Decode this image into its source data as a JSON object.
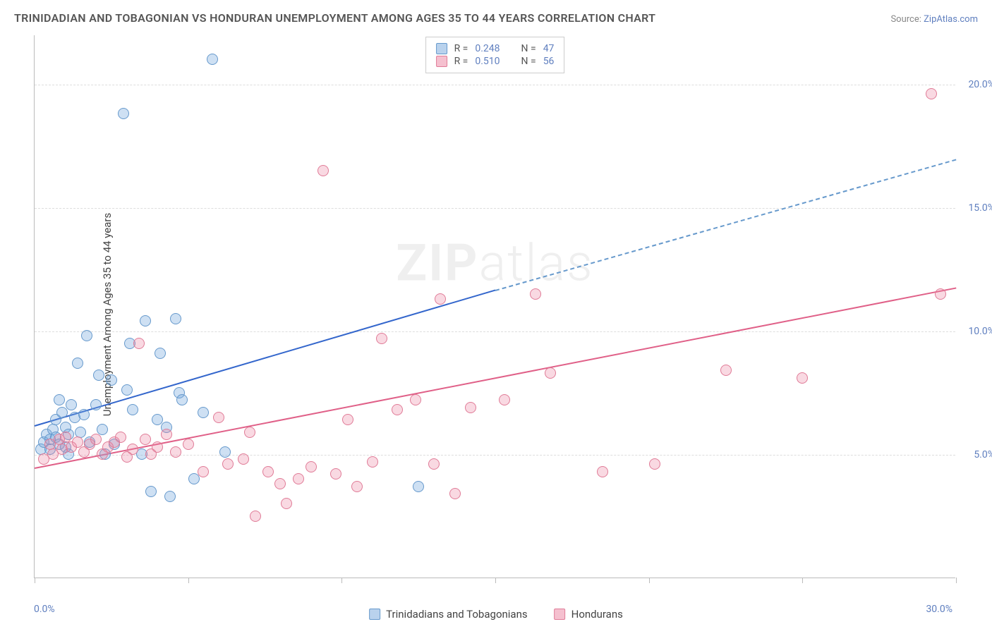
{
  "title": "TRINIDADIAN AND TOBAGONIAN VS HONDURAN UNEMPLOYMENT AMONG AGES 35 TO 44 YEARS CORRELATION CHART",
  "source_label": "Source:",
  "source_value": "ZipAtlas.com",
  "ylabel": "Unemployment Among Ages 35 to 44 years",
  "watermark_a": "ZIP",
  "watermark_b": "atlas",
  "background_color": "#ffffff",
  "axis_color": "#bbbbbb",
  "grid_color": "#dddddd",
  "tick_label_color": "#5f7fbf",
  "text_color": "#444444",
  "xlim": [
    0,
    30
  ],
  "ylim": [
    0,
    22
  ],
  "xtick_positions": [
    0,
    5,
    10,
    15,
    20,
    25,
    30
  ],
  "xtick_labels": {
    "0": "0.0%",
    "30": "30.0%"
  },
  "ytick_positions": [
    5,
    10,
    15,
    20
  ],
  "ytick_labels": {
    "5": "5.0%",
    "10": "10.0%",
    "15": "15.0%",
    "20": "20.0%"
  },
  "legend_top": {
    "rows": [
      {
        "swatch": "blue",
        "r_label": "R =",
        "r_value": "0.248",
        "n_label": "N =",
        "n_value": "47"
      },
      {
        "swatch": "pink",
        "r_label": "R =",
        "r_value": "0.510",
        "n_label": "N =",
        "n_value": "56"
      }
    ]
  },
  "legend_bottom": {
    "items": [
      {
        "swatch": "blue",
        "label": "Trinidadians and Tobagonians"
      },
      {
        "swatch": "pink",
        "label": "Hondurans"
      }
    ]
  },
  "series": [
    {
      "name": "Trinidadians and Tobagonians",
      "marker_fill": "rgba(115,165,220,0.35)",
      "marker_stroke": "#6699cc",
      "marker_size": 16,
      "trend_color": "#3366cc",
      "trend_dash_color": "#6699cc",
      "trend": {
        "x1": 0,
        "y1": 6.2,
        "x_solid": 15,
        "y_solid": 11.7,
        "x2": 30,
        "y2": 17
      },
      "points": [
        [
          0.2,
          5.2
        ],
        [
          0.3,
          5.5
        ],
        [
          0.4,
          5.8
        ],
        [
          0.5,
          5.2
        ],
        [
          0.5,
          5.6
        ],
        [
          0.6,
          6.0
        ],
        [
          0.7,
          5.7
        ],
        [
          0.7,
          6.4
        ],
        [
          0.8,
          5.4
        ],
        [
          0.8,
          7.2
        ],
        [
          0.9,
          6.7
        ],
        [
          1.0,
          5.3
        ],
        [
          1.0,
          6.1
        ],
        [
          1.1,
          5.0
        ],
        [
          1.1,
          5.8
        ],
        [
          1.2,
          7.0
        ],
        [
          1.3,
          6.5
        ],
        [
          1.4,
          8.7
        ],
        [
          1.5,
          5.9
        ],
        [
          1.6,
          6.6
        ],
        [
          1.7,
          9.8
        ],
        [
          1.8,
          5.5
        ],
        [
          2.0,
          7.0
        ],
        [
          2.1,
          8.2
        ],
        [
          2.2,
          6.0
        ],
        [
          2.3,
          5.0
        ],
        [
          2.5,
          8.0
        ],
        [
          2.6,
          5.4
        ],
        [
          2.9,
          18.8
        ],
        [
          3.0,
          7.6
        ],
        [
          3.1,
          9.5
        ],
        [
          3.2,
          6.8
        ],
        [
          3.5,
          5.0
        ],
        [
          3.6,
          10.4
        ],
        [
          3.8,
          3.5
        ],
        [
          4.0,
          6.4
        ],
        [
          4.1,
          9.1
        ],
        [
          4.3,
          6.1
        ],
        [
          4.4,
          3.3
        ],
        [
          4.6,
          10.5
        ],
        [
          4.7,
          7.5
        ],
        [
          4.8,
          7.2
        ],
        [
          5.2,
          4.0
        ],
        [
          5.5,
          6.7
        ],
        [
          5.8,
          21.0
        ],
        [
          12.5,
          3.7
        ],
        [
          6.2,
          5.1
        ]
      ]
    },
    {
      "name": "Hondurans",
      "marker_fill": "rgba(235,130,160,0.3)",
      "marker_stroke": "#e07b97",
      "marker_size": 16,
      "trend_color": "#e06088",
      "trend": {
        "x1": 0,
        "y1": 4.5,
        "x2": 30,
        "y2": 11.8
      },
      "points": [
        [
          0.3,
          4.8
        ],
        [
          0.5,
          5.4
        ],
        [
          0.6,
          5.0
        ],
        [
          0.8,
          5.6
        ],
        [
          0.9,
          5.2
        ],
        [
          1.0,
          5.7
        ],
        [
          1.2,
          5.3
        ],
        [
          1.4,
          5.5
        ],
        [
          1.6,
          5.1
        ],
        [
          1.8,
          5.4
        ],
        [
          2.0,
          5.6
        ],
        [
          2.2,
          5.0
        ],
        [
          2.4,
          5.3
        ],
        [
          2.6,
          5.5
        ],
        [
          2.8,
          5.7
        ],
        [
          3.0,
          4.9
        ],
        [
          3.2,
          5.2
        ],
        [
          3.4,
          9.5
        ],
        [
          3.6,
          5.6
        ],
        [
          3.8,
          5.0
        ],
        [
          4.0,
          5.3
        ],
        [
          4.3,
          5.8
        ],
        [
          4.6,
          5.1
        ],
        [
          5.0,
          5.4
        ],
        [
          5.5,
          4.3
        ],
        [
          6.0,
          6.5
        ],
        [
          6.3,
          4.6
        ],
        [
          6.8,
          4.8
        ],
        [
          7.2,
          2.5
        ],
        [
          7.6,
          4.3
        ],
        [
          8.0,
          3.8
        ],
        [
          8.2,
          3.0
        ],
        [
          8.6,
          4.0
        ],
        [
          9.0,
          4.5
        ],
        [
          9.4,
          16.5
        ],
        [
          9.8,
          4.2
        ],
        [
          10.5,
          3.7
        ],
        [
          11.0,
          4.7
        ],
        [
          11.3,
          9.7
        ],
        [
          11.8,
          6.8
        ],
        [
          12.4,
          7.2
        ],
        [
          13.0,
          4.6
        ],
        [
          13.2,
          11.3
        ],
        [
          13.7,
          3.4
        ],
        [
          14.2,
          6.9
        ],
        [
          15.3,
          7.2
        ],
        [
          16.3,
          11.5
        ],
        [
          16.8,
          8.3
        ],
        [
          18.5,
          4.3
        ],
        [
          20.2,
          4.6
        ],
        [
          22.5,
          8.4
        ],
        [
          25.0,
          8.1
        ],
        [
          29.2,
          19.6
        ],
        [
          29.5,
          11.5
        ],
        [
          10.2,
          6.4
        ],
        [
          7.0,
          5.9
        ]
      ]
    }
  ]
}
